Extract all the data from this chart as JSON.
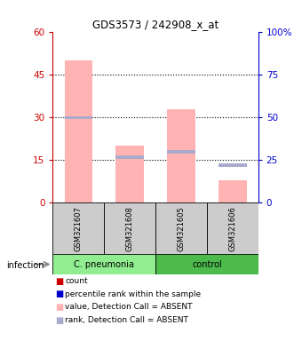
{
  "title": "GDS3573 / 242908_x_at",
  "samples": [
    "GSM321607",
    "GSM321608",
    "GSM321605",
    "GSM321606"
  ],
  "groups": [
    {
      "label": "C. pneumonia",
      "indices": [
        0,
        1
      ],
      "color": "#90ee90"
    },
    {
      "label": "control",
      "indices": [
        2,
        3
      ],
      "color": "#4cbb4c"
    }
  ],
  "pink_bar_values": [
    50,
    20,
    33,
    8
  ],
  "blue_rank_values": [
    50,
    27,
    30,
    22
  ],
  "left_ylim": [
    0,
    60
  ],
  "left_yticks": [
    0,
    15,
    30,
    45,
    60
  ],
  "right_ylim": [
    0,
    100
  ],
  "right_yticks": [
    0,
    25,
    50,
    75,
    100
  ],
  "left_color": "#cc0000",
  "right_color": "#0000cc",
  "bar_width": 0.55,
  "pink_color": "#ffb3b3",
  "blue_rank_color": "#aaaacc",
  "sample_bg_color": "#cccccc",
  "legend_items": [
    {
      "label": "count",
      "color": "#cc0000"
    },
    {
      "label": "percentile rank within the sample",
      "color": "#0000cc"
    },
    {
      "label": "value, Detection Call = ABSENT",
      "color": "#ffb3b3"
    },
    {
      "label": "rank, Detection Call = ABSENT",
      "color": "#aaaacc"
    }
  ],
  "infection_label": "infection",
  "dotgrid_yticks": [
    15,
    30,
    45
  ]
}
